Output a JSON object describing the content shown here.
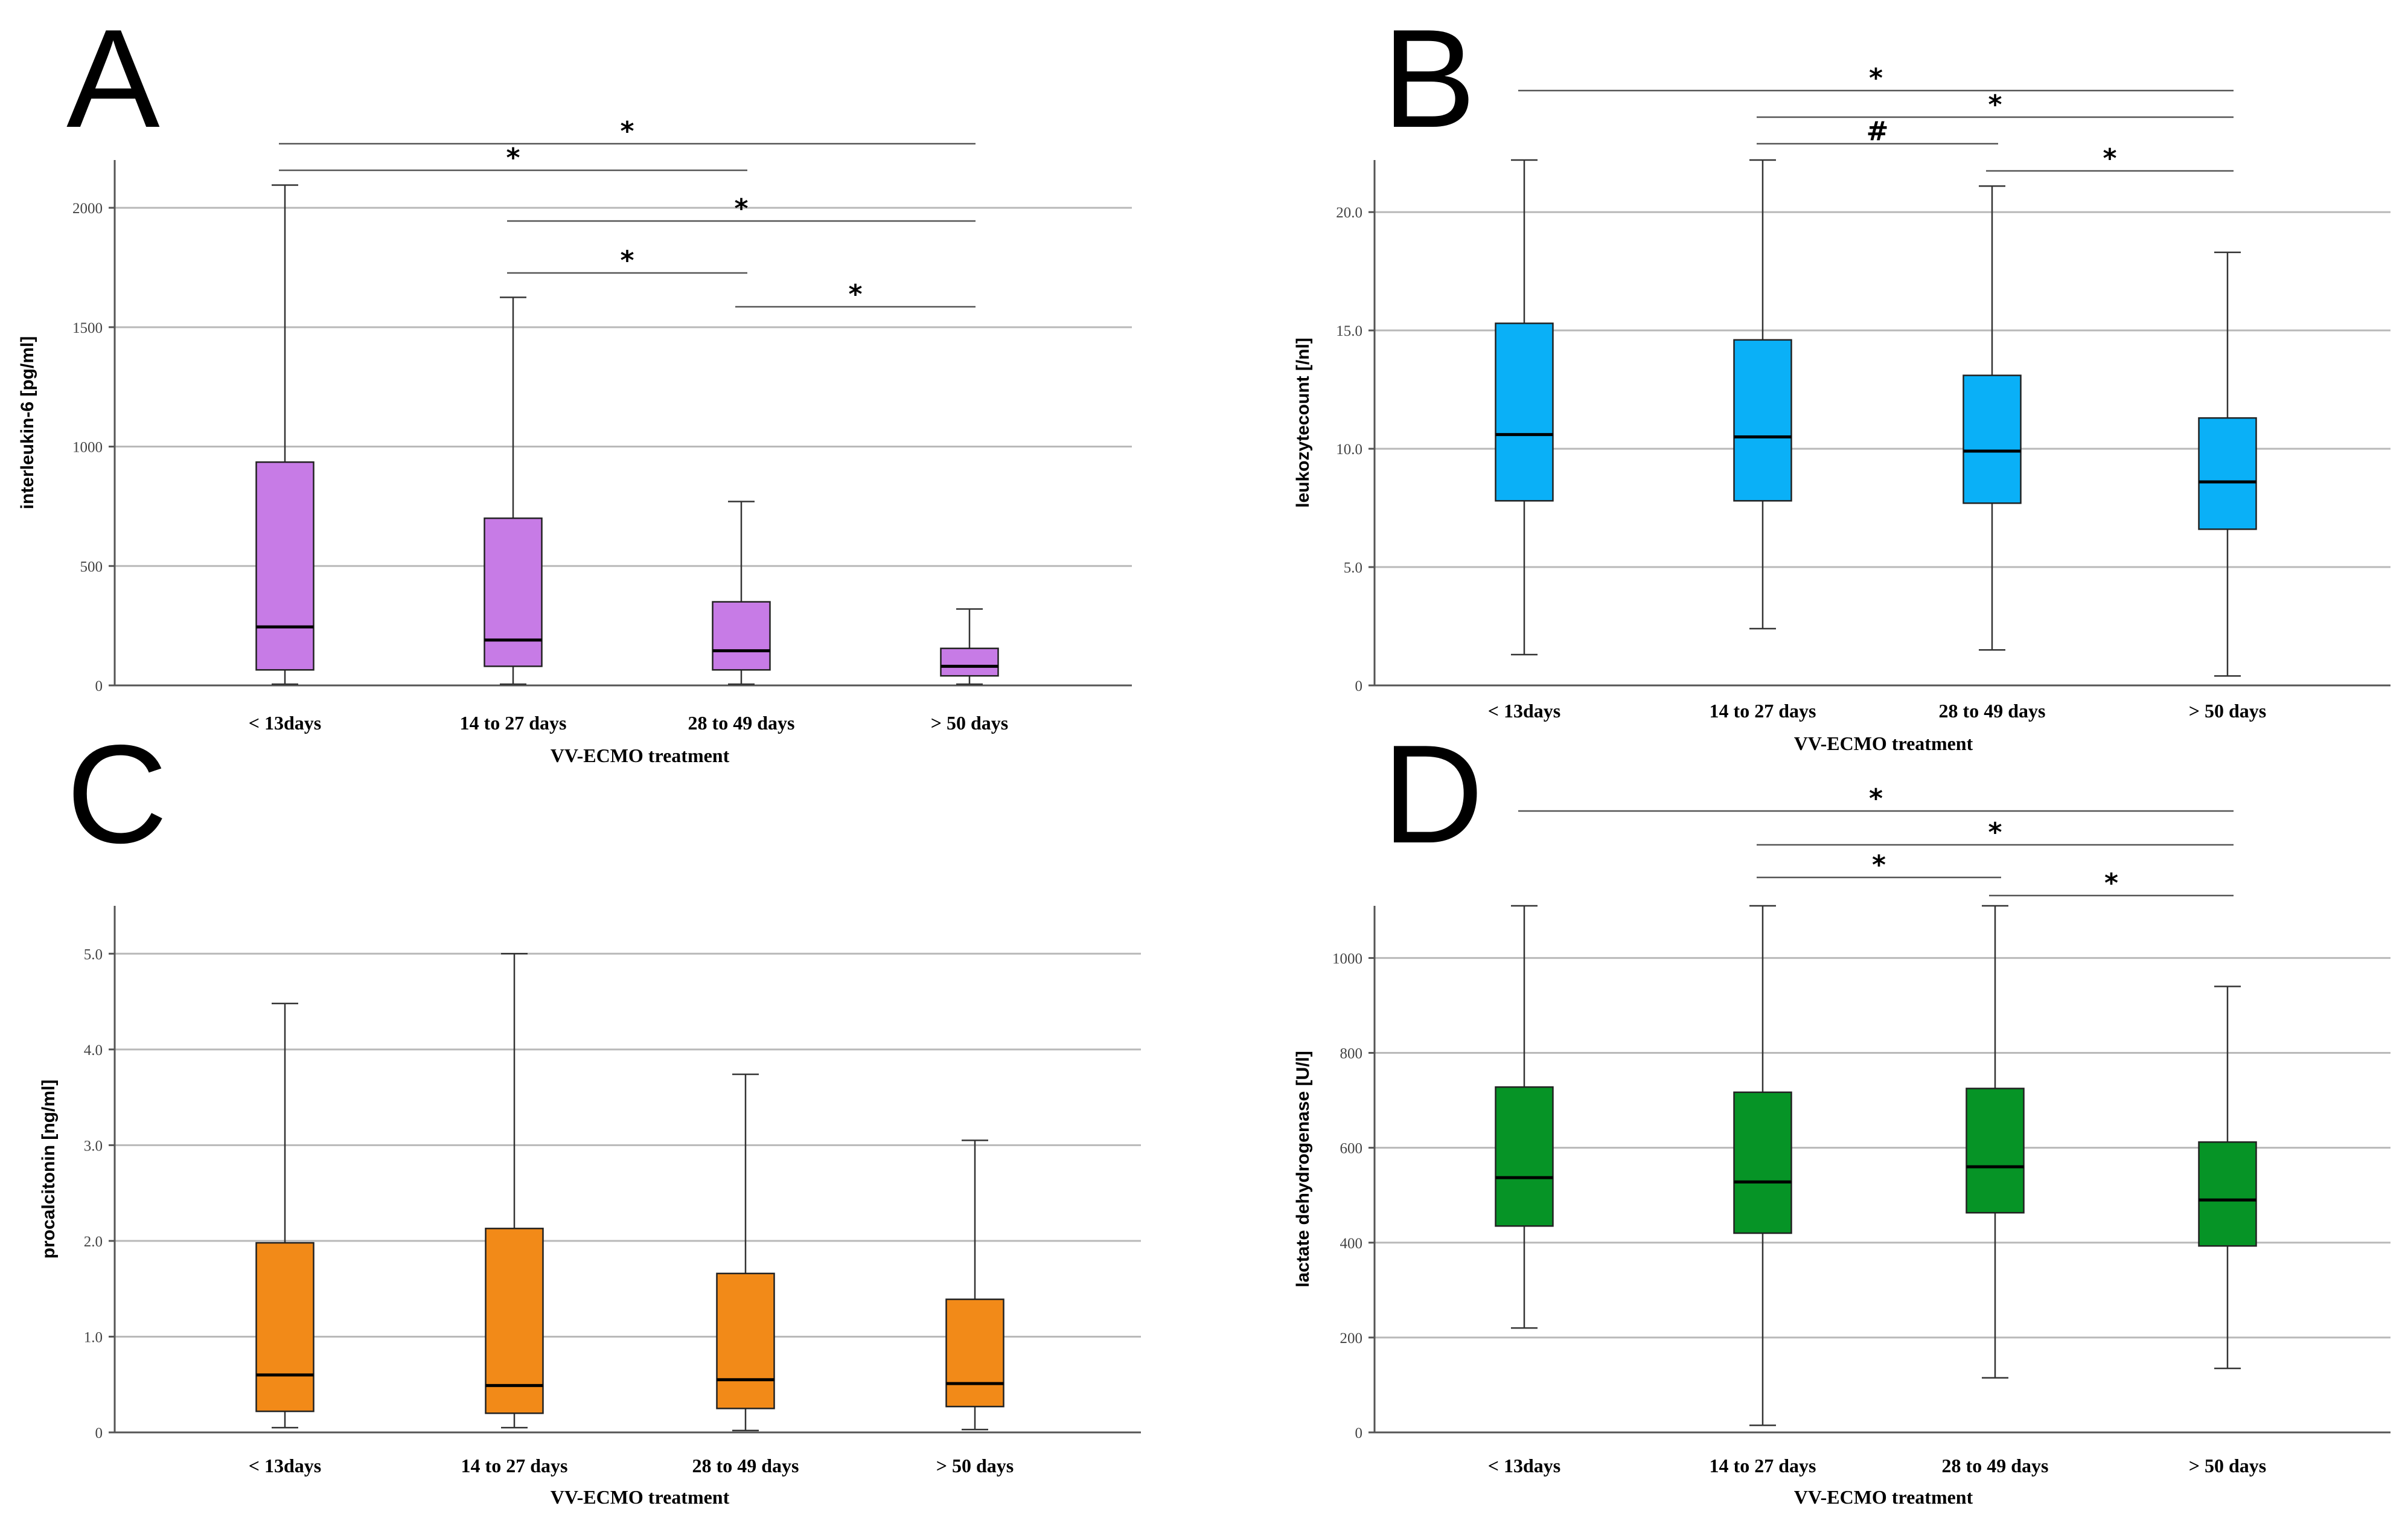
{
  "figure": {
    "x_title": "VV-ECMO treatment"
  },
  "chart_data": [
    {
      "type": "box",
      "panel_label": "A",
      "ylabel": "interleukin-6 [pg/ml]",
      "xlabel": "VV-ECMO treatment",
      "ylim": [
        0,
        2200
      ],
      "yticks": [
        0,
        500,
        1000,
        1500,
        2000
      ],
      "ytick_labels": [
        "0",
        "500",
        "1000",
        "1500",
        "2000"
      ],
      "color": "#c77be6",
      "categories": [
        "< 13days",
        "14 to 27 days",
        "28 to 49 days",
        "> 50 days"
      ],
      "boxes": [
        {
          "min": 5,
          "q1": 65,
          "median": 245,
          "q3": 935,
          "max": 2095
        },
        {
          "min": 5,
          "q1": 80,
          "median": 190,
          "q3": 700,
          "max": 1625
        },
        {
          "min": 5,
          "q1": 65,
          "median": 145,
          "q3": 350,
          "max": 770
        },
        {
          "min": 5,
          "q1": 40,
          "median": 80,
          "q3": 155,
          "max": 320
        }
      ],
      "significance": [
        {
          "from": 0,
          "to": 3,
          "label": "*"
        },
        {
          "from": 0,
          "to": 2,
          "label": "*"
        },
        {
          "from": 1,
          "to": 3,
          "label": "*"
        },
        {
          "from": 1,
          "to": 2,
          "label": "*"
        },
        {
          "from": 2,
          "to": 3,
          "label": "*"
        }
      ]
    },
    {
      "type": "box",
      "panel_label": "B",
      "ylabel": "leukozytecount [/nl]",
      "xlabel": "VV-ECMO treatment",
      "ylim": [
        0,
        22.2
      ],
      "yticks": [
        0,
        5,
        10,
        15,
        20
      ],
      "ytick_labels": [
        "0",
        "5.0",
        "10.0",
        "15.0",
        "20.0"
      ],
      "color": "#0ab0f7",
      "categories": [
        "< 13days",
        "14 to 27 days",
        "28 to 49 days",
        "> 50 days"
      ],
      "boxes": [
        {
          "min": 1.3,
          "q1": 7.8,
          "median": 10.6,
          "q3": 15.3,
          "max": 22.2
        },
        {
          "min": 2.4,
          "q1": 7.8,
          "median": 10.5,
          "q3": 14.6,
          "max": 22.2
        },
        {
          "min": 1.5,
          "q1": 7.7,
          "median": 9.9,
          "q3": 13.1,
          "max": 21.1
        },
        {
          "min": 0.4,
          "q1": 6.6,
          "median": 8.6,
          "q3": 11.3,
          "max": 18.3
        }
      ],
      "significance": [
        {
          "from": 0,
          "to": 3,
          "label": "*"
        },
        {
          "from": 1,
          "to": 3,
          "label": "*"
        },
        {
          "from": 1,
          "to": 2,
          "label": "#"
        },
        {
          "from": 2,
          "to": 3,
          "label": "*"
        }
      ]
    },
    {
      "type": "box",
      "panel_label": "C",
      "ylabel": "procalcitonin [ng/ml]",
      "xlabel": "VV-ECMO treatment",
      "ylim": [
        0,
        5.5
      ],
      "yticks": [
        0,
        1,
        2,
        3,
        4,
        5
      ],
      "ytick_labels": [
        "0",
        "1.0",
        "2.0",
        "3.0",
        "4.0",
        "5.0"
      ],
      "color": "#f28a18",
      "categories": [
        "< 13days",
        "14 to 27 days",
        "28 to 49 days",
        "> 50 days"
      ],
      "boxes": [
        {
          "min": 0.05,
          "q1": 0.22,
          "median": 0.6,
          "q3": 1.98,
          "max": 4.48
        },
        {
          "min": 0.05,
          "q1": 0.2,
          "median": 0.49,
          "q3": 2.13,
          "max": 5.0
        },
        {
          "min": 0.02,
          "q1": 0.25,
          "median": 0.55,
          "q3": 1.66,
          "max": 3.74
        },
        {
          "min": 0.03,
          "q1": 0.27,
          "median": 0.51,
          "q3": 1.39,
          "max": 3.05
        }
      ],
      "significance": []
    },
    {
      "type": "box",
      "panel_label": "D",
      "ylabel": "lactate dehydrogenase [U/l]",
      "xlabel": "VV-ECMO treatment",
      "ylim": [
        0,
        1110
      ],
      "yticks": [
        0,
        200,
        400,
        600,
        800,
        1000
      ],
      "ytick_labels": [
        "0",
        "200",
        "400",
        "600",
        "800",
        "1000"
      ],
      "color": "#069426",
      "categories": [
        "< 13days",
        "14 to 27 days",
        "28 to 49 days",
        "> 50 days"
      ],
      "boxes": [
        {
          "min": 220,
          "q1": 435,
          "median": 537,
          "q3": 728,
          "max": 1110
        },
        {
          "min": 15,
          "q1": 420,
          "median": 528,
          "q3": 717,
          "max": 1110
        },
        {
          "min": 115,
          "q1": 463,
          "median": 560,
          "q3": 725,
          "max": 1110
        },
        {
          "min": 135,
          "q1": 393,
          "median": 490,
          "q3": 612,
          "max": 940
        }
      ],
      "significance": [
        {
          "from": 0,
          "to": 3,
          "label": "*"
        },
        {
          "from": 1,
          "to": 3,
          "label": "*"
        },
        {
          "from": 1,
          "to": 2,
          "label": "*"
        },
        {
          "from": 2,
          "to": 3,
          "label": "*"
        }
      ]
    }
  ]
}
